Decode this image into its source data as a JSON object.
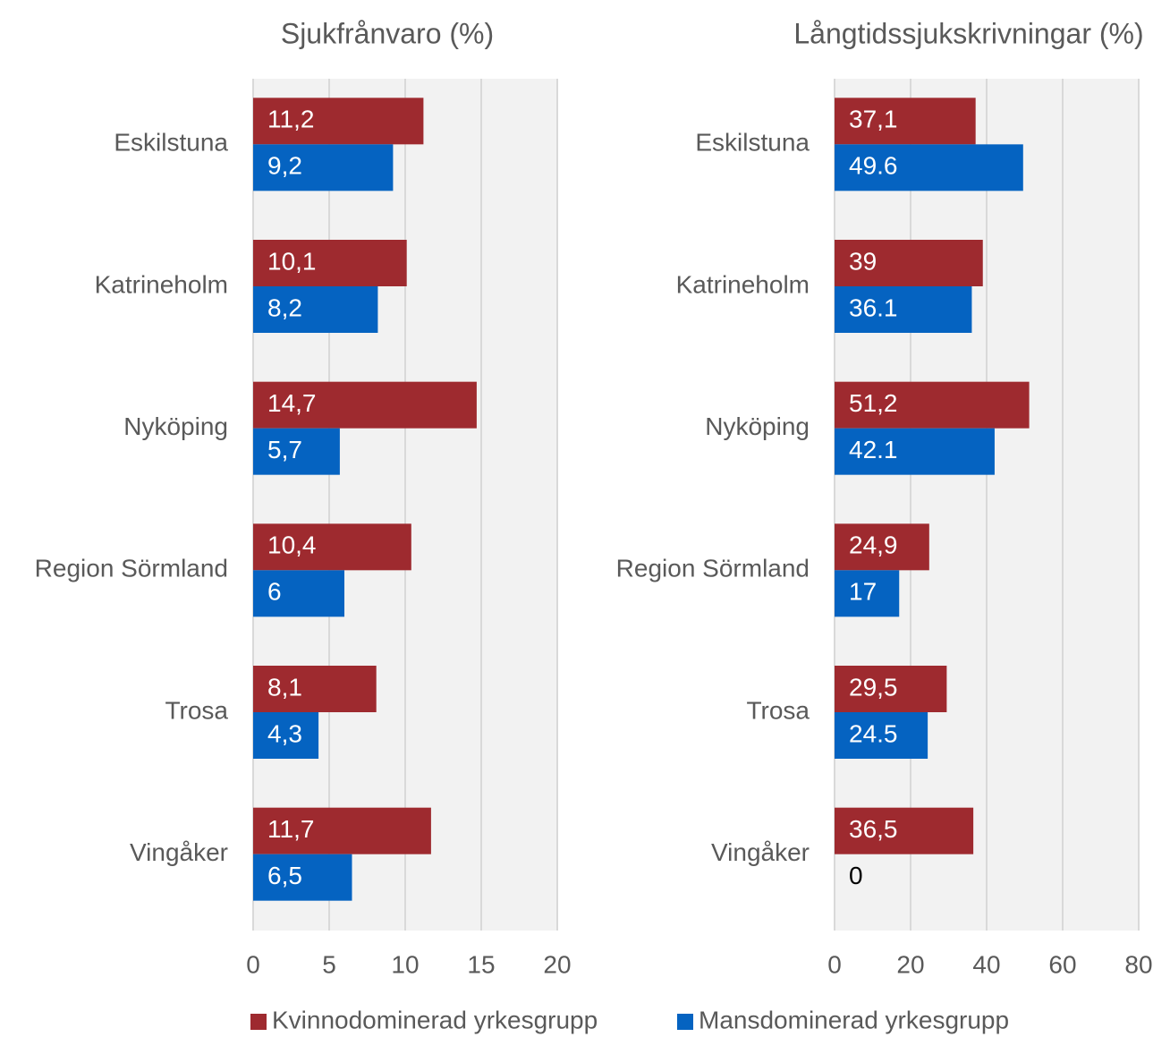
{
  "chart_data": [
    {
      "type": "bar",
      "orientation": "horizontal",
      "title": "Sjukfrånvaro (%)",
      "categories": [
        "Eskilstuna",
        "Katrineholm",
        "Nyköping",
        "Region Sörmland",
        "Trosa",
        "Vingåker"
      ],
      "series": [
        {
          "name": "Kvinnodominerad yrkesgrupp",
          "color": "#9e2a2f",
          "values": [
            11.2,
            10.1,
            14.7,
            10.4,
            8.1,
            11.7
          ],
          "value_labels": [
            "11,2",
            "10,1",
            "14,7",
            "10,4",
            "8,1",
            "11,7"
          ]
        },
        {
          "name": "Mansdominerad yrkesgrupp",
          "color": "#0563c1",
          "values": [
            9.2,
            8.2,
            5.7,
            6,
            4.3,
            6.5
          ],
          "value_labels": [
            "9,2",
            "8,2",
            "5,7",
            "6",
            "4,3",
            "6,5"
          ]
        }
      ],
      "xlim": [
        0,
        20
      ],
      "xticks": [
        0,
        5,
        10,
        15,
        20
      ],
      "grid": true,
      "legend": "bottom"
    },
    {
      "type": "bar",
      "orientation": "horizontal",
      "title": "Långtidssjukskrivningar (%)",
      "categories": [
        "Eskilstuna",
        "Katrineholm",
        "Nyköping",
        "Region Sörmland",
        "Trosa",
        "Vingåker"
      ],
      "series": [
        {
          "color": "#9e2a2f",
          "values": [
            37.1,
            39,
            51.2,
            24.9,
            29.5,
            36.5
          ],
          "value_labels": [
            "37,1",
            "39",
            "51,2",
            "24,9",
            "29,5",
            "36,5"
          ]
        },
        {
          "color": "#0563c1",
          "values": [
            49.6,
            36.1,
            42.1,
            17,
            24.5,
            0
          ]
        }
      ],
      "xlim": [
        0,
        80
      ],
      "xticks": [
        0,
        20,
        40,
        60,
        80
      ],
      "grid": true
    }
  ]
}
